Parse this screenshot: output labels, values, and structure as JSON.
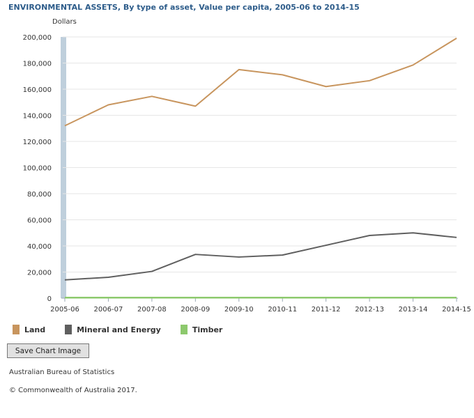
{
  "title": "ENVIRONMENTAL ASSETS, By type of asset, Value per capita, 2005-06 to 2014-15",
  "chart_data": {
    "type": "line",
    "ylabel": "Dollars",
    "ylim": [
      0,
      200000
    ],
    "yticks": [
      0,
      20000,
      40000,
      60000,
      80000,
      100000,
      120000,
      140000,
      160000,
      180000,
      200000
    ],
    "ytick_labels": [
      "0",
      "20,000",
      "40,000",
      "60,000",
      "80,000",
      "100,000",
      "120,000",
      "140,000",
      "160,000",
      "180,000",
      "200,000"
    ],
    "categories": [
      "2005-06",
      "2006-07",
      "2007-08",
      "2008-09",
      "2009-10",
      "2010-11",
      "2011-12",
      "2012-13",
      "2013-14",
      "2014-15"
    ],
    "grid": true,
    "series": [
      {
        "name": "Land",
        "color": "#c8955e",
        "values": [
          132000,
          148000,
          154500,
          147000,
          175000,
          171000,
          162000,
          166500,
          178500,
          199000
        ]
      },
      {
        "name": "Mineral and Energy",
        "color": "#5f5f5f",
        "values": [
          14000,
          16000,
          20500,
          33500,
          31500,
          33000,
          40500,
          48000,
          50000,
          46500
        ]
      },
      {
        "name": "Timber",
        "color": "#8dc96d",
        "values": [
          400,
          400,
          400,
          400,
          400,
          400,
          400,
          400,
          400,
          400
        ]
      }
    ]
  },
  "legend": [
    {
      "label": "Land",
      "color": "#c8955e"
    },
    {
      "label": "Mineral and Energy",
      "color": "#5f5f5f"
    },
    {
      "label": "Timber",
      "color": "#8dc96d"
    }
  ],
  "save_button_label": "Save Chart Image",
  "source": "Australian Bureau of Statistics",
  "copyright": "© Commonwealth of Australia 2017.",
  "highlight_color": "#bfcfdc"
}
